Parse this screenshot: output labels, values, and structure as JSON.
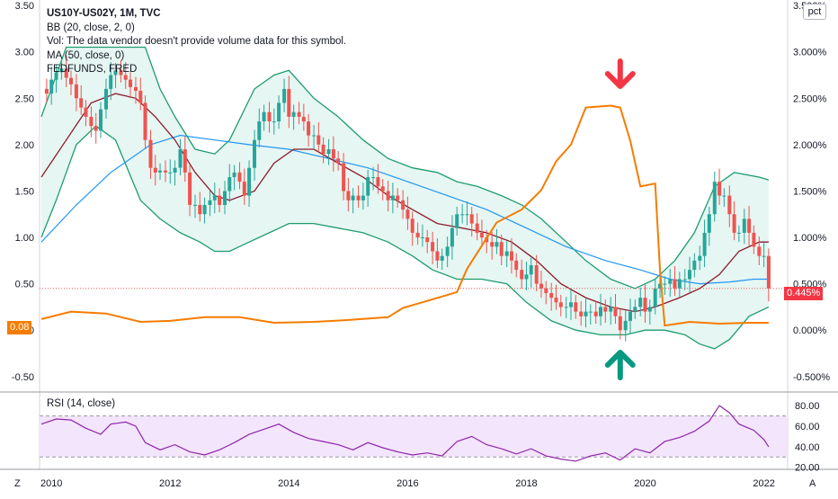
{
  "header": {
    "title": "US10Y-US02Y, 1M, TVC",
    "bb": "BB (20, close, 2, 0)",
    "vol": "Vol: The data vendor doesn't provide volume data for this symbol.",
    "ma": "MA (50, close, 0)",
    "fed": "FEDFUNDS, FRED",
    "rsi": "RSI (14, close)",
    "pct_button": "pct",
    "z_button": "Z",
    "a_button": "A"
  },
  "badges": {
    "fed_value": "0.08",
    "price_value": "0.445%"
  },
  "colors": {
    "up": "#26a69a",
    "down": "#ef5350",
    "bb_band": "#1e9c6e",
    "bb_fill": "#e0f4ef",
    "ma20": "#8b1a2b",
    "ma50": "#2196f3",
    "fed": "#f57c00",
    "rsi_line": "#8e24aa",
    "rsi_fill": "#f3e5fc",
    "arrow_down": "#f23645",
    "arrow_up": "#089981"
  },
  "chart_data": {
    "type": "candlestick",
    "x_axis": {
      "ticks": [
        "2010",
        "2012",
        "2014",
        "2016",
        "2018",
        "2020",
        "2022"
      ],
      "range": [
        2009.8,
        2022.4
      ]
    },
    "left_axis": {
      "ticks": [
        "3.50",
        "3.00",
        "2.50",
        "2.00",
        "1.50",
        "1.00",
        "0.50",
        "0.00",
        "-0.50"
      ],
      "range": [
        -0.55,
        3.52
      ]
    },
    "right_axis": {
      "ticks": [
        "3.500%",
        "3.000%",
        "2.500%",
        "2.000%",
        "1.500%",
        "1.000%",
        "0.500%",
        "0.000%",
        "-0.500%"
      ],
      "range": [
        -0.55,
        3.52
      ]
    },
    "rsi_axis": {
      "ticks": [
        "80.00",
        "60.00",
        "40.00",
        "20.00"
      ],
      "range": [
        18,
        88
      ],
      "band": [
        30,
        70
      ]
    },
    "close_series": [
      [
        2009.83,
        2.6
      ],
      [
        2009.92,
        2.55
      ],
      [
        2010.0,
        2.7
      ],
      [
        2010.08,
        2.78
      ],
      [
        2010.17,
        2.82
      ],
      [
        2010.25,
        2.72
      ],
      [
        2010.33,
        2.65
      ],
      [
        2010.42,
        2.5
      ],
      [
        2010.5,
        2.4
      ],
      [
        2010.58,
        2.3
      ],
      [
        2010.67,
        2.2
      ],
      [
        2010.75,
        2.15
      ],
      [
        2010.83,
        2.38
      ],
      [
        2010.92,
        2.6
      ],
      [
        2011.0,
        2.75
      ],
      [
        2011.08,
        2.8
      ],
      [
        2011.17,
        2.75
      ],
      [
        2011.25,
        2.7
      ],
      [
        2011.33,
        2.62
      ],
      [
        2011.42,
        2.58
      ],
      [
        2011.5,
        2.45
      ],
      [
        2011.58,
        2.05
      ],
      [
        2011.67,
        1.75
      ],
      [
        2011.75,
        1.7
      ],
      [
        2011.83,
        1.72
      ],
      [
        2011.92,
        1.7
      ],
      [
        2012.0,
        1.7
      ],
      [
        2012.08,
        1.75
      ],
      [
        2012.17,
        1.95
      ],
      [
        2012.25,
        1.7
      ],
      [
        2012.33,
        1.35
      ],
      [
        2012.42,
        1.35
      ],
      [
        2012.5,
        1.25
      ],
      [
        2012.58,
        1.35
      ],
      [
        2012.67,
        1.4
      ],
      [
        2012.75,
        1.45
      ],
      [
        2012.83,
        1.35
      ],
      [
        2012.92,
        1.5
      ],
      [
        2013.0,
        1.65
      ],
      [
        2013.08,
        1.7
      ],
      [
        2013.17,
        1.6
      ],
      [
        2013.25,
        1.45
      ],
      [
        2013.33,
        1.75
      ],
      [
        2013.42,
        2.05
      ],
      [
        2013.5,
        2.25
      ],
      [
        2013.58,
        2.35
      ],
      [
        2013.67,
        2.25
      ],
      [
        2013.75,
        2.25
      ],
      [
        2013.83,
        2.45
      ],
      [
        2013.92,
        2.6
      ],
      [
        2014.0,
        2.3
      ],
      [
        2014.08,
        2.35
      ],
      [
        2014.17,
        2.3
      ],
      [
        2014.25,
        2.25
      ],
      [
        2014.33,
        2.1
      ],
      [
        2014.42,
        2.1
      ],
      [
        2014.5,
        2.0
      ],
      [
        2014.58,
        1.9
      ],
      [
        2014.67,
        1.95
      ],
      [
        2014.75,
        1.85
      ],
      [
        2014.83,
        1.8
      ],
      [
        2014.92,
        1.5
      ],
      [
        2015.0,
        1.4
      ],
      [
        2015.08,
        1.45
      ],
      [
        2015.17,
        1.4
      ],
      [
        2015.25,
        1.45
      ],
      [
        2015.33,
        1.65
      ],
      [
        2015.42,
        1.65
      ],
      [
        2015.5,
        1.55
      ],
      [
        2015.58,
        1.5
      ],
      [
        2015.67,
        1.4
      ],
      [
        2015.75,
        1.45
      ],
      [
        2015.83,
        1.4
      ],
      [
        2015.92,
        1.3
      ],
      [
        2016.0,
        1.2
      ],
      [
        2016.08,
        1.05
      ],
      [
        2016.17,
        1.0
      ],
      [
        2016.25,
        1.0
      ],
      [
        2016.33,
        0.95
      ],
      [
        2016.42,
        0.85
      ],
      [
        2016.5,
        0.75
      ],
      [
        2016.58,
        0.8
      ],
      [
        2016.67,
        0.9
      ],
      [
        2016.75,
        1.1
      ],
      [
        2016.83,
        1.25
      ],
      [
        2016.92,
        1.25
      ],
      [
        2017.0,
        1.25
      ],
      [
        2017.08,
        1.15
      ],
      [
        2017.17,
        1.05
      ],
      [
        2017.25,
        1.0
      ],
      [
        2017.33,
        0.95
      ],
      [
        2017.42,
        0.9
      ],
      [
        2017.5,
        0.95
      ],
      [
        2017.58,
        0.8
      ],
      [
        2017.67,
        0.85
      ],
      [
        2017.75,
        0.75
      ],
      [
        2017.83,
        0.65
      ],
      [
        2017.92,
        0.55
      ],
      [
        2018.0,
        0.6
      ],
      [
        2018.08,
        0.7
      ],
      [
        2018.17,
        0.5
      ],
      [
        2018.25,
        0.45
      ],
      [
        2018.33,
        0.4
      ],
      [
        2018.42,
        0.35
      ],
      [
        2018.5,
        0.3
      ],
      [
        2018.58,
        0.25
      ],
      [
        2018.67,
        0.25
      ],
      [
        2018.75,
        0.3
      ],
      [
        2018.83,
        0.2
      ],
      [
        2018.92,
        0.15
      ],
      [
        2019.0,
        0.2
      ],
      [
        2019.08,
        0.2
      ],
      [
        2019.17,
        0.15
      ],
      [
        2019.25,
        0.25
      ],
      [
        2019.33,
        0.2
      ],
      [
        2019.42,
        0.25
      ],
      [
        2019.5,
        0.15
      ],
      [
        2019.58,
        0.0
      ],
      [
        2019.67,
        0.1
      ],
      [
        2019.75,
        0.2
      ],
      [
        2019.83,
        0.25
      ],
      [
        2019.92,
        0.35
      ],
      [
        2020.0,
        0.2
      ],
      [
        2020.08,
        0.25
      ],
      [
        2020.17,
        0.45
      ],
      [
        2020.25,
        0.5
      ],
      [
        2020.33,
        0.5
      ],
      [
        2020.42,
        0.55
      ],
      [
        2020.5,
        0.45
      ],
      [
        2020.58,
        0.55
      ],
      [
        2020.67,
        0.55
      ],
      [
        2020.75,
        0.65
      ],
      [
        2020.83,
        0.75
      ],
      [
        2020.92,
        0.8
      ],
      [
        2021.0,
        1.05
      ],
      [
        2021.08,
        1.25
      ],
      [
        2021.17,
        1.6
      ],
      [
        2021.25,
        1.45
      ],
      [
        2021.33,
        1.45
      ],
      [
        2021.42,
        1.25
      ],
      [
        2021.5,
        1.05
      ],
      [
        2021.58,
        1.05
      ],
      [
        2021.67,
        1.2
      ],
      [
        2021.75,
        1.05
      ],
      [
        2021.83,
        0.9
      ],
      [
        2021.92,
        0.8
      ],
      [
        2022.0,
        0.8
      ],
      [
        2022.08,
        0.45
      ]
    ],
    "bb_upper": [
      [
        2009.83,
        2.3
      ],
      [
        2010.25,
        3.05
      ],
      [
        2010.75,
        3.05
      ],
      [
        2011.25,
        3.05
      ],
      [
        2011.58,
        3.05
      ],
      [
        2011.83,
        2.6
      ],
      [
        2012.08,
        2.3
      ],
      [
        2012.42,
        1.95
      ],
      [
        2012.75,
        1.9
      ],
      [
        2013.0,
        2.05
      ],
      [
        2013.42,
        2.6
      ],
      [
        2013.75,
        2.75
      ],
      [
        2014.0,
        2.8
      ],
      [
        2014.42,
        2.5
      ],
      [
        2014.83,
        2.3
      ],
      [
        2015.25,
        2.05
      ],
      [
        2015.67,
        1.85
      ],
      [
        2016.08,
        1.75
      ],
      [
        2016.5,
        1.7
      ],
      [
        2016.83,
        1.6
      ],
      [
        2017.17,
        1.55
      ],
      [
        2017.58,
        1.45
      ],
      [
        2017.92,
        1.35
      ],
      [
        2018.25,
        1.2
      ],
      [
        2018.67,
        0.95
      ],
      [
        2019.0,
        0.75
      ],
      [
        2019.42,
        0.55
      ],
      [
        2019.83,
        0.45
      ],
      [
        2020.17,
        0.55
      ],
      [
        2020.5,
        0.75
      ],
      [
        2020.83,
        1.05
      ],
      [
        2021.17,
        1.55
      ],
      [
        2021.5,
        1.7
      ],
      [
        2021.92,
        1.65
      ],
      [
        2022.08,
        1.62
      ]
    ],
    "bb_lower": [
      [
        2009.83,
        1.0
      ],
      [
        2010.08,
        1.4
      ],
      [
        2010.42,
        2.0
      ],
      [
        2010.75,
        2.2
      ],
      [
        2011.08,
        2.05
      ],
      [
        2011.5,
        1.4
      ],
      [
        2011.83,
        1.2
      ],
      [
        2012.17,
        1.05
      ],
      [
        2012.5,
        0.95
      ],
      [
        2012.75,
        0.85
      ],
      [
        2013.0,
        0.85
      ],
      [
        2013.33,
        0.95
      ],
      [
        2013.67,
        1.05
      ],
      [
        2014.0,
        1.15
      ],
      [
        2014.42,
        1.15
      ],
      [
        2014.83,
        1.1
      ],
      [
        2015.25,
        1.05
      ],
      [
        2015.67,
        0.95
      ],
      [
        2016.08,
        0.8
      ],
      [
        2016.42,
        0.65
      ],
      [
        2016.83,
        0.55
      ],
      [
        2017.25,
        0.55
      ],
      [
        2017.67,
        0.5
      ],
      [
        2018.0,
        0.3
      ],
      [
        2018.42,
        0.1
      ],
      [
        2018.83,
        0.0
      ],
      [
        2019.25,
        -0.05
      ],
      [
        2019.67,
        -0.05
      ],
      [
        2020.0,
        0.0
      ],
      [
        2020.33,
        0.0
      ],
      [
        2020.67,
        -0.05
      ],
      [
        2020.92,
        -0.15
      ],
      [
        2021.17,
        -0.2
      ],
      [
        2021.42,
        -0.1
      ],
      [
        2021.75,
        0.15
      ],
      [
        2022.08,
        0.25
      ]
    ],
    "ma20": [
      [
        2009.83,
        1.65
      ],
      [
        2010.25,
        2.05
      ],
      [
        2010.67,
        2.45
      ],
      [
        2011.08,
        2.55
      ],
      [
        2011.42,
        2.5
      ],
      [
        2011.75,
        2.3
      ],
      [
        2012.08,
        2.05
      ],
      [
        2012.42,
        1.7
      ],
      [
        2012.75,
        1.45
      ],
      [
        2013.0,
        1.4
      ],
      [
        2013.42,
        1.5
      ],
      [
        2013.75,
        1.8
      ],
      [
        2014.08,
        1.95
      ],
      [
        2014.42,
        1.95
      ],
      [
        2014.83,
        1.8
      ],
      [
        2015.25,
        1.65
      ],
      [
        2015.67,
        1.45
      ],
      [
        2016.08,
        1.3
      ],
      [
        2016.5,
        1.15
      ],
      [
        2016.92,
        1.1
      ],
      [
        2017.33,
        1.05
      ],
      [
        2017.75,
        0.95
      ],
      [
        2018.17,
        0.75
      ],
      [
        2018.58,
        0.5
      ],
      [
        2019.0,
        0.35
      ],
      [
        2019.42,
        0.25
      ],
      [
        2019.83,
        0.2
      ],
      [
        2020.17,
        0.25
      ],
      [
        2020.58,
        0.35
      ],
      [
        2020.92,
        0.45
      ],
      [
        2021.25,
        0.6
      ],
      [
        2021.58,
        0.85
      ],
      [
        2021.92,
        0.95
      ],
      [
        2022.08,
        0.95
      ]
    ],
    "ma50": [
      [
        2009.83,
        0.95
      ],
      [
        2010.42,
        1.35
      ],
      [
        2011.0,
        1.7
      ],
      [
        2011.67,
        2.0
      ],
      [
        2012.17,
        2.1
      ],
      [
        2012.75,
        2.05
      ],
      [
        2013.33,
        2.0
      ],
      [
        2014.0,
        1.95
      ],
      [
        2014.67,
        1.85
      ],
      [
        2015.33,
        1.75
      ],
      [
        2016.0,
        1.6
      ],
      [
        2016.67,
        1.45
      ],
      [
        2017.33,
        1.3
      ],
      [
        2018.0,
        1.1
      ],
      [
        2018.67,
        0.9
      ],
      [
        2019.33,
        0.75
      ],
      [
        2019.92,
        0.65
      ],
      [
        2020.42,
        0.55
      ],
      [
        2020.92,
        0.5
      ],
      [
        2021.42,
        0.52
      ],
      [
        2021.83,
        0.55
      ],
      [
        2022.08,
        0.55
      ]
    ],
    "fedfunds": [
      [
        2009.83,
        0.12
      ],
      [
        2010.33,
        0.2
      ],
      [
        2010.92,
        0.18
      ],
      [
        2011.5,
        0.09
      ],
      [
        2012.0,
        0.1
      ],
      [
        2012.58,
        0.14
      ],
      [
        2013.17,
        0.14
      ],
      [
        2013.75,
        0.08
      ],
      [
        2014.42,
        0.09
      ],
      [
        2015.0,
        0.11
      ],
      [
        2015.67,
        0.14
      ],
      [
        2015.92,
        0.24
      ],
      [
        2016.83,
        0.41
      ],
      [
        2017.0,
        0.66
      ],
      [
        2017.25,
        0.91
      ],
      [
        2017.5,
        1.16
      ],
      [
        2017.92,
        1.3
      ],
      [
        2018.25,
        1.51
      ],
      [
        2018.5,
        1.82
      ],
      [
        2018.75,
        2.0
      ],
      [
        2019.0,
        2.4
      ],
      [
        2019.42,
        2.42
      ],
      [
        2019.58,
        2.4
      ],
      [
        2019.75,
        2.04
      ],
      [
        2019.92,
        1.55
      ],
      [
        2020.17,
        1.58
      ],
      [
        2020.25,
        0.65
      ],
      [
        2020.33,
        0.05
      ],
      [
        2020.75,
        0.09
      ],
      [
        2021.25,
        0.07
      ],
      [
        2021.75,
        0.08
      ],
      [
        2022.08,
        0.08
      ]
    ],
    "rsi": [
      [
        2009.83,
        62
      ],
      [
        2010.08,
        67
      ],
      [
        2010.33,
        66
      ],
      [
        2010.58,
        58
      ],
      [
        2010.83,
        52
      ],
      [
        2011.0,
        62
      ],
      [
        2011.25,
        64
      ],
      [
        2011.42,
        60
      ],
      [
        2011.58,
        44
      ],
      [
        2011.83,
        37
      ],
      [
        2012.08,
        42
      ],
      [
        2012.33,
        35
      ],
      [
        2012.58,
        32
      ],
      [
        2012.83,
        37
      ],
      [
        2013.08,
        44
      ],
      [
        2013.33,
        52
      ],
      [
        2013.58,
        57
      ],
      [
        2013.83,
        62
      ],
      [
        2014.08,
        54
      ],
      [
        2014.33,
        48
      ],
      [
        2014.58,
        45
      ],
      [
        2014.83,
        42
      ],
      [
        2015.08,
        37
      ],
      [
        2015.33,
        44
      ],
      [
        2015.58,
        39
      ],
      [
        2015.83,
        35
      ],
      [
        2016.08,
        32
      ],
      [
        2016.33,
        34
      ],
      [
        2016.58,
        31
      ],
      [
        2016.83,
        45
      ],
      [
        2017.08,
        50
      ],
      [
        2017.33,
        42
      ],
      [
        2017.58,
        38
      ],
      [
        2017.83,
        33
      ],
      [
        2018.08,
        38
      ],
      [
        2018.33,
        31
      ],
      [
        2018.58,
        28
      ],
      [
        2018.83,
        26
      ],
      [
        2019.08,
        31
      ],
      [
        2019.33,
        34
      ],
      [
        2019.58,
        27
      ],
      [
        2019.83,
        38
      ],
      [
        2020.08,
        34
      ],
      [
        2020.33,
        45
      ],
      [
        2020.58,
        49
      ],
      [
        2020.83,
        55
      ],
      [
        2021.08,
        65
      ],
      [
        2021.25,
        80
      ],
      [
        2021.42,
        73
      ],
      [
        2021.58,
        62
      ],
      [
        2021.83,
        56
      ],
      [
        2022.0,
        47
      ],
      [
        2022.08,
        40
      ]
    ]
  }
}
